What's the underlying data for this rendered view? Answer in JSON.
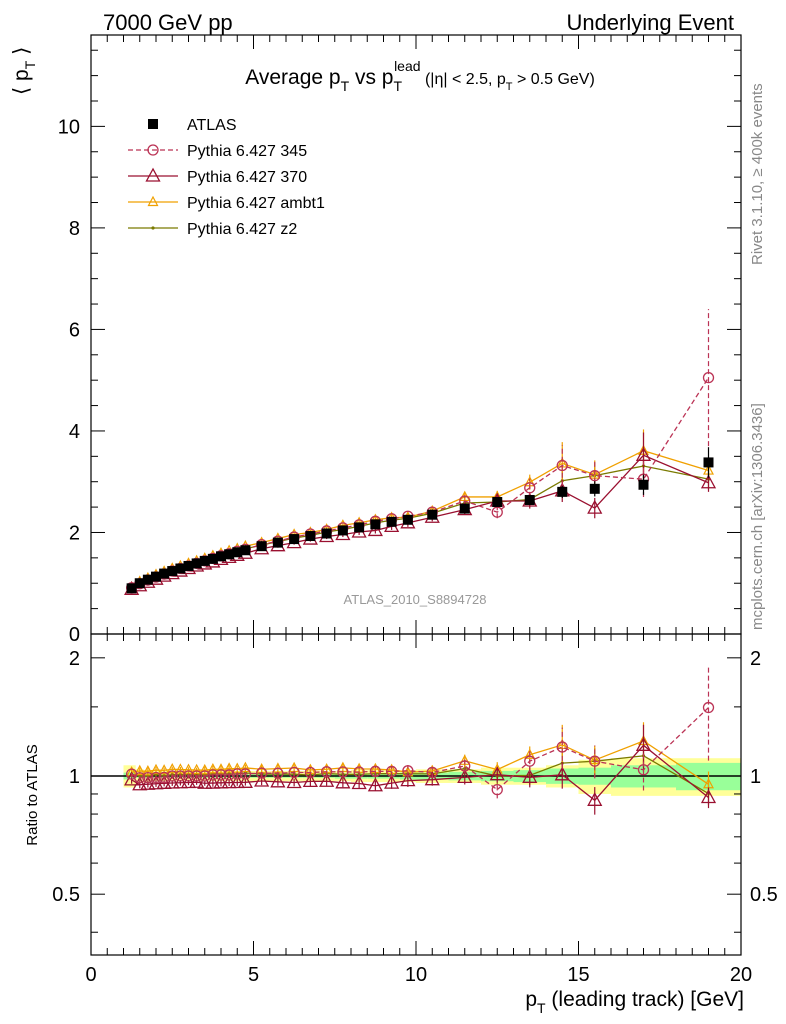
{
  "header": {
    "energy_label": "7000 GeV pp",
    "category_label": "Underlying Event"
  },
  "right_labels": {
    "rivet": "Rivet 3.1.10, ≥ 400k events",
    "site": "mcplots.cern.ch [arXiv:1306.3436]"
  },
  "chart_data": [
    {
      "type": "scatter",
      "title": "Average p_T vs p_T^lead (|η| < 2.5, p_T > 0.5 GeV)",
      "title_parts": {
        "main": "Average p",
        "sub1": "T",
        "vs": " vs p",
        "sup": "lead",
        "sub2": "T",
        "cut": " (|η| < 2.5, p",
        "sub3": "T",
        "cut_end": " > 0.5 GeV)"
      },
      "ylabel": "⟨ p_T ⟩",
      "ylabel_parts": {
        "left": "⟨ p",
        "sub": "T",
        "right": " ⟩"
      },
      "analysis_id": "ATLAS_2010_S8894728",
      "xlim": [
        0,
        20
      ],
      "ylim": [
        0,
        11.8
      ],
      "y_ticks": [
        0,
        2,
        4,
        6,
        8,
        10
      ],
      "grid": false,
      "legend_position": "top-left",
      "x": [
        1.25,
        1.5,
        1.75,
        2.0,
        2.25,
        2.5,
        2.75,
        3.0,
        3.25,
        3.5,
        3.75,
        4.0,
        4.25,
        4.5,
        4.75,
        5.25,
        5.75,
        6.25,
        6.75,
        7.25,
        7.75,
        8.25,
        8.75,
        9.25,
        9.75,
        10.5,
        11.5,
        12.5,
        13.5,
        14.5,
        15.5,
        17.0,
        19.0
      ],
      "series": [
        {
          "name": "ATLAS",
          "color": "#000000",
          "marker": "square-filled",
          "dash": "none",
          "values": [
            0.9,
            1.0,
            1.07,
            1.13,
            1.19,
            1.24,
            1.29,
            1.34,
            1.39,
            1.44,
            1.48,
            1.53,
            1.57,
            1.61,
            1.65,
            1.73,
            1.8,
            1.87,
            1.93,
            1.98,
            2.04,
            2.1,
            2.16,
            2.21,
            2.25,
            2.35,
            2.47,
            2.6,
            2.64,
            2.8,
            2.86,
            2.94,
            3.38
          ],
          "errors": [
            0.02,
            0.02,
            0.02,
            0.02,
            0.02,
            0.02,
            0.02,
            0.02,
            0.02,
            0.02,
            0.02,
            0.02,
            0.02,
            0.02,
            0.02,
            0.03,
            0.03,
            0.03,
            0.03,
            0.03,
            0.04,
            0.04,
            0.04,
            0.04,
            0.05,
            0.05,
            0.06,
            0.08,
            0.1,
            0.12,
            0.15,
            0.2,
            0.3
          ]
        },
        {
          "name": "Pythia 6.427 345",
          "color": "#bb3355",
          "marker": "circle-open",
          "dash": "dashed",
          "values": [
            0.91,
            0.99,
            1.06,
            1.12,
            1.18,
            1.24,
            1.29,
            1.34,
            1.39,
            1.44,
            1.49,
            1.54,
            1.58,
            1.63,
            1.67,
            1.76,
            1.83,
            1.91,
            1.97,
            2.03,
            2.09,
            2.15,
            2.22,
            2.27,
            2.32,
            2.4,
            2.62,
            2.4,
            2.88,
            3.32,
            3.12,
            3.05,
            5.05
          ],
          "errors": [
            0.02,
            0.02,
            0.02,
            0.02,
            0.02,
            0.02,
            0.02,
            0.02,
            0.03,
            0.03,
            0.03,
            0.03,
            0.03,
            0.03,
            0.03,
            0.04,
            0.04,
            0.04,
            0.05,
            0.05,
            0.05,
            0.06,
            0.06,
            0.07,
            0.08,
            0.08,
            0.1,
            0.12,
            0.18,
            0.4,
            0.3,
            0.35,
            1.35
          ]
        },
        {
          "name": "Pythia 6.427 370",
          "color": "#9a1030",
          "marker": "triangle-open",
          "dash": "none",
          "values": [
            0.88,
            0.95,
            1.02,
            1.08,
            1.14,
            1.19,
            1.24,
            1.29,
            1.34,
            1.38,
            1.42,
            1.47,
            1.51,
            1.55,
            1.59,
            1.68,
            1.74,
            1.8,
            1.87,
            1.92,
            1.96,
            2.01,
            2.04,
            2.12,
            2.19,
            2.3,
            2.45,
            2.62,
            2.62,
            2.82,
            2.48,
            3.52,
            2.98
          ],
          "errors": [
            0.02,
            0.02,
            0.02,
            0.02,
            0.02,
            0.02,
            0.02,
            0.02,
            0.02,
            0.02,
            0.03,
            0.03,
            0.03,
            0.03,
            0.03,
            0.04,
            0.04,
            0.04,
            0.05,
            0.05,
            0.05,
            0.06,
            0.06,
            0.07,
            0.08,
            0.08,
            0.1,
            0.12,
            0.15,
            0.22,
            0.2,
            0.45,
            0.18
          ]
        },
        {
          "name": "Pythia 6.427 ambt1",
          "color": "#f0a000",
          "marker": "triangle-open-small",
          "dash": "none",
          "values": [
            0.92,
            1.03,
            1.1,
            1.17,
            1.23,
            1.29,
            1.34,
            1.39,
            1.44,
            1.49,
            1.54,
            1.59,
            1.64,
            1.68,
            1.73,
            1.8,
            1.88,
            1.96,
            2.0,
            2.06,
            2.14,
            2.19,
            2.25,
            2.29,
            2.3,
            2.42,
            2.7,
            2.7,
            2.99,
            3.36,
            3.14,
            3.61,
            3.22
          ],
          "errors": [
            0.02,
            0.02,
            0.02,
            0.02,
            0.02,
            0.02,
            0.02,
            0.02,
            0.02,
            0.03,
            0.03,
            0.03,
            0.03,
            0.03,
            0.03,
            0.04,
            0.04,
            0.04,
            0.05,
            0.05,
            0.05,
            0.06,
            0.06,
            0.07,
            0.07,
            0.08,
            0.1,
            0.12,
            0.15,
            0.42,
            0.28,
            0.42,
            0.25
          ]
        },
        {
          "name": "Pythia 6.427 z2",
          "color": "#7a7a00",
          "marker": "dot",
          "dash": "none",
          "values": [
            0.91,
            1.0,
            1.07,
            1.14,
            1.19,
            1.25,
            1.3,
            1.35,
            1.4,
            1.45,
            1.5,
            1.55,
            1.59,
            1.63,
            1.68,
            1.75,
            1.82,
            1.89,
            1.94,
            2.01,
            2.06,
            2.12,
            2.19,
            2.24,
            2.28,
            2.38,
            2.58,
            2.6,
            2.65,
            3.02,
            3.12,
            3.31,
            3.05
          ],
          "errors": [
            0.02,
            0.02,
            0.02,
            0.02,
            0.02,
            0.02,
            0.02,
            0.02,
            0.02,
            0.02,
            0.03,
            0.03,
            0.03,
            0.03,
            0.03,
            0.04,
            0.04,
            0.04,
            0.05,
            0.05,
            0.05,
            0.06,
            0.06,
            0.07,
            0.07,
            0.08,
            0.1,
            0.12,
            0.15,
            0.22,
            0.25,
            0.3,
            0.2
          ]
        }
      ]
    },
    {
      "type": "scatter",
      "ylabel": "Ratio to ATLAS",
      "xlabel": "p_T (leading track) [GeV]",
      "xlabel_parts": {
        "main": "p",
        "sub": "T",
        "rest": " (leading track) [GeV]"
      },
      "xlim": [
        0,
        20
      ],
      "ylim": [
        0.35,
        2.3
      ],
      "x_ticks": [
        0,
        5,
        10,
        15,
        20
      ],
      "y_ticks": [
        0.5,
        1,
        2
      ],
      "y_tick_labels": [
        "0.5",
        "1",
        "2"
      ],
      "band_edges": [
        1.0,
        1.375,
        1.625,
        1.875,
        2.125,
        2.375,
        2.625,
        2.875,
        3.125,
        3.375,
        3.625,
        3.875,
        4.125,
        4.375,
        4.625,
        5.0,
        5.5,
        6.0,
        6.5,
        7.0,
        7.5,
        8.0,
        8.5,
        9.0,
        9.5,
        10.0,
        11.0,
        12.0,
        13.0,
        14.0,
        15.0,
        16.0,
        18.0,
        20.0
      ],
      "band_stat": [
        0.02,
        0.01,
        0.01,
        0.01,
        0.01,
        0.01,
        0.01,
        0.01,
        0.01,
        0.01,
        0.01,
        0.01,
        0.01,
        0.01,
        0.01,
        0.01,
        0.01,
        0.01,
        0.01,
        0.01,
        0.015,
        0.015,
        0.015,
        0.015,
        0.02,
        0.02,
        0.025,
        0.03,
        0.035,
        0.045,
        0.05,
        0.065,
        0.08
      ],
      "band_total": [
        0.065,
        0.04,
        0.035,
        0.03,
        0.03,
        0.03,
        0.03,
        0.03,
        0.03,
        0.03,
        0.03,
        0.03,
        0.03,
        0.03,
        0.03,
        0.03,
        0.03,
        0.03,
        0.03,
        0.03,
        0.03,
        0.035,
        0.035,
        0.035,
        0.035,
        0.04,
        0.04,
        0.05,
        0.05,
        0.065,
        0.1,
        0.11,
        0.11
      ]
    }
  ]
}
